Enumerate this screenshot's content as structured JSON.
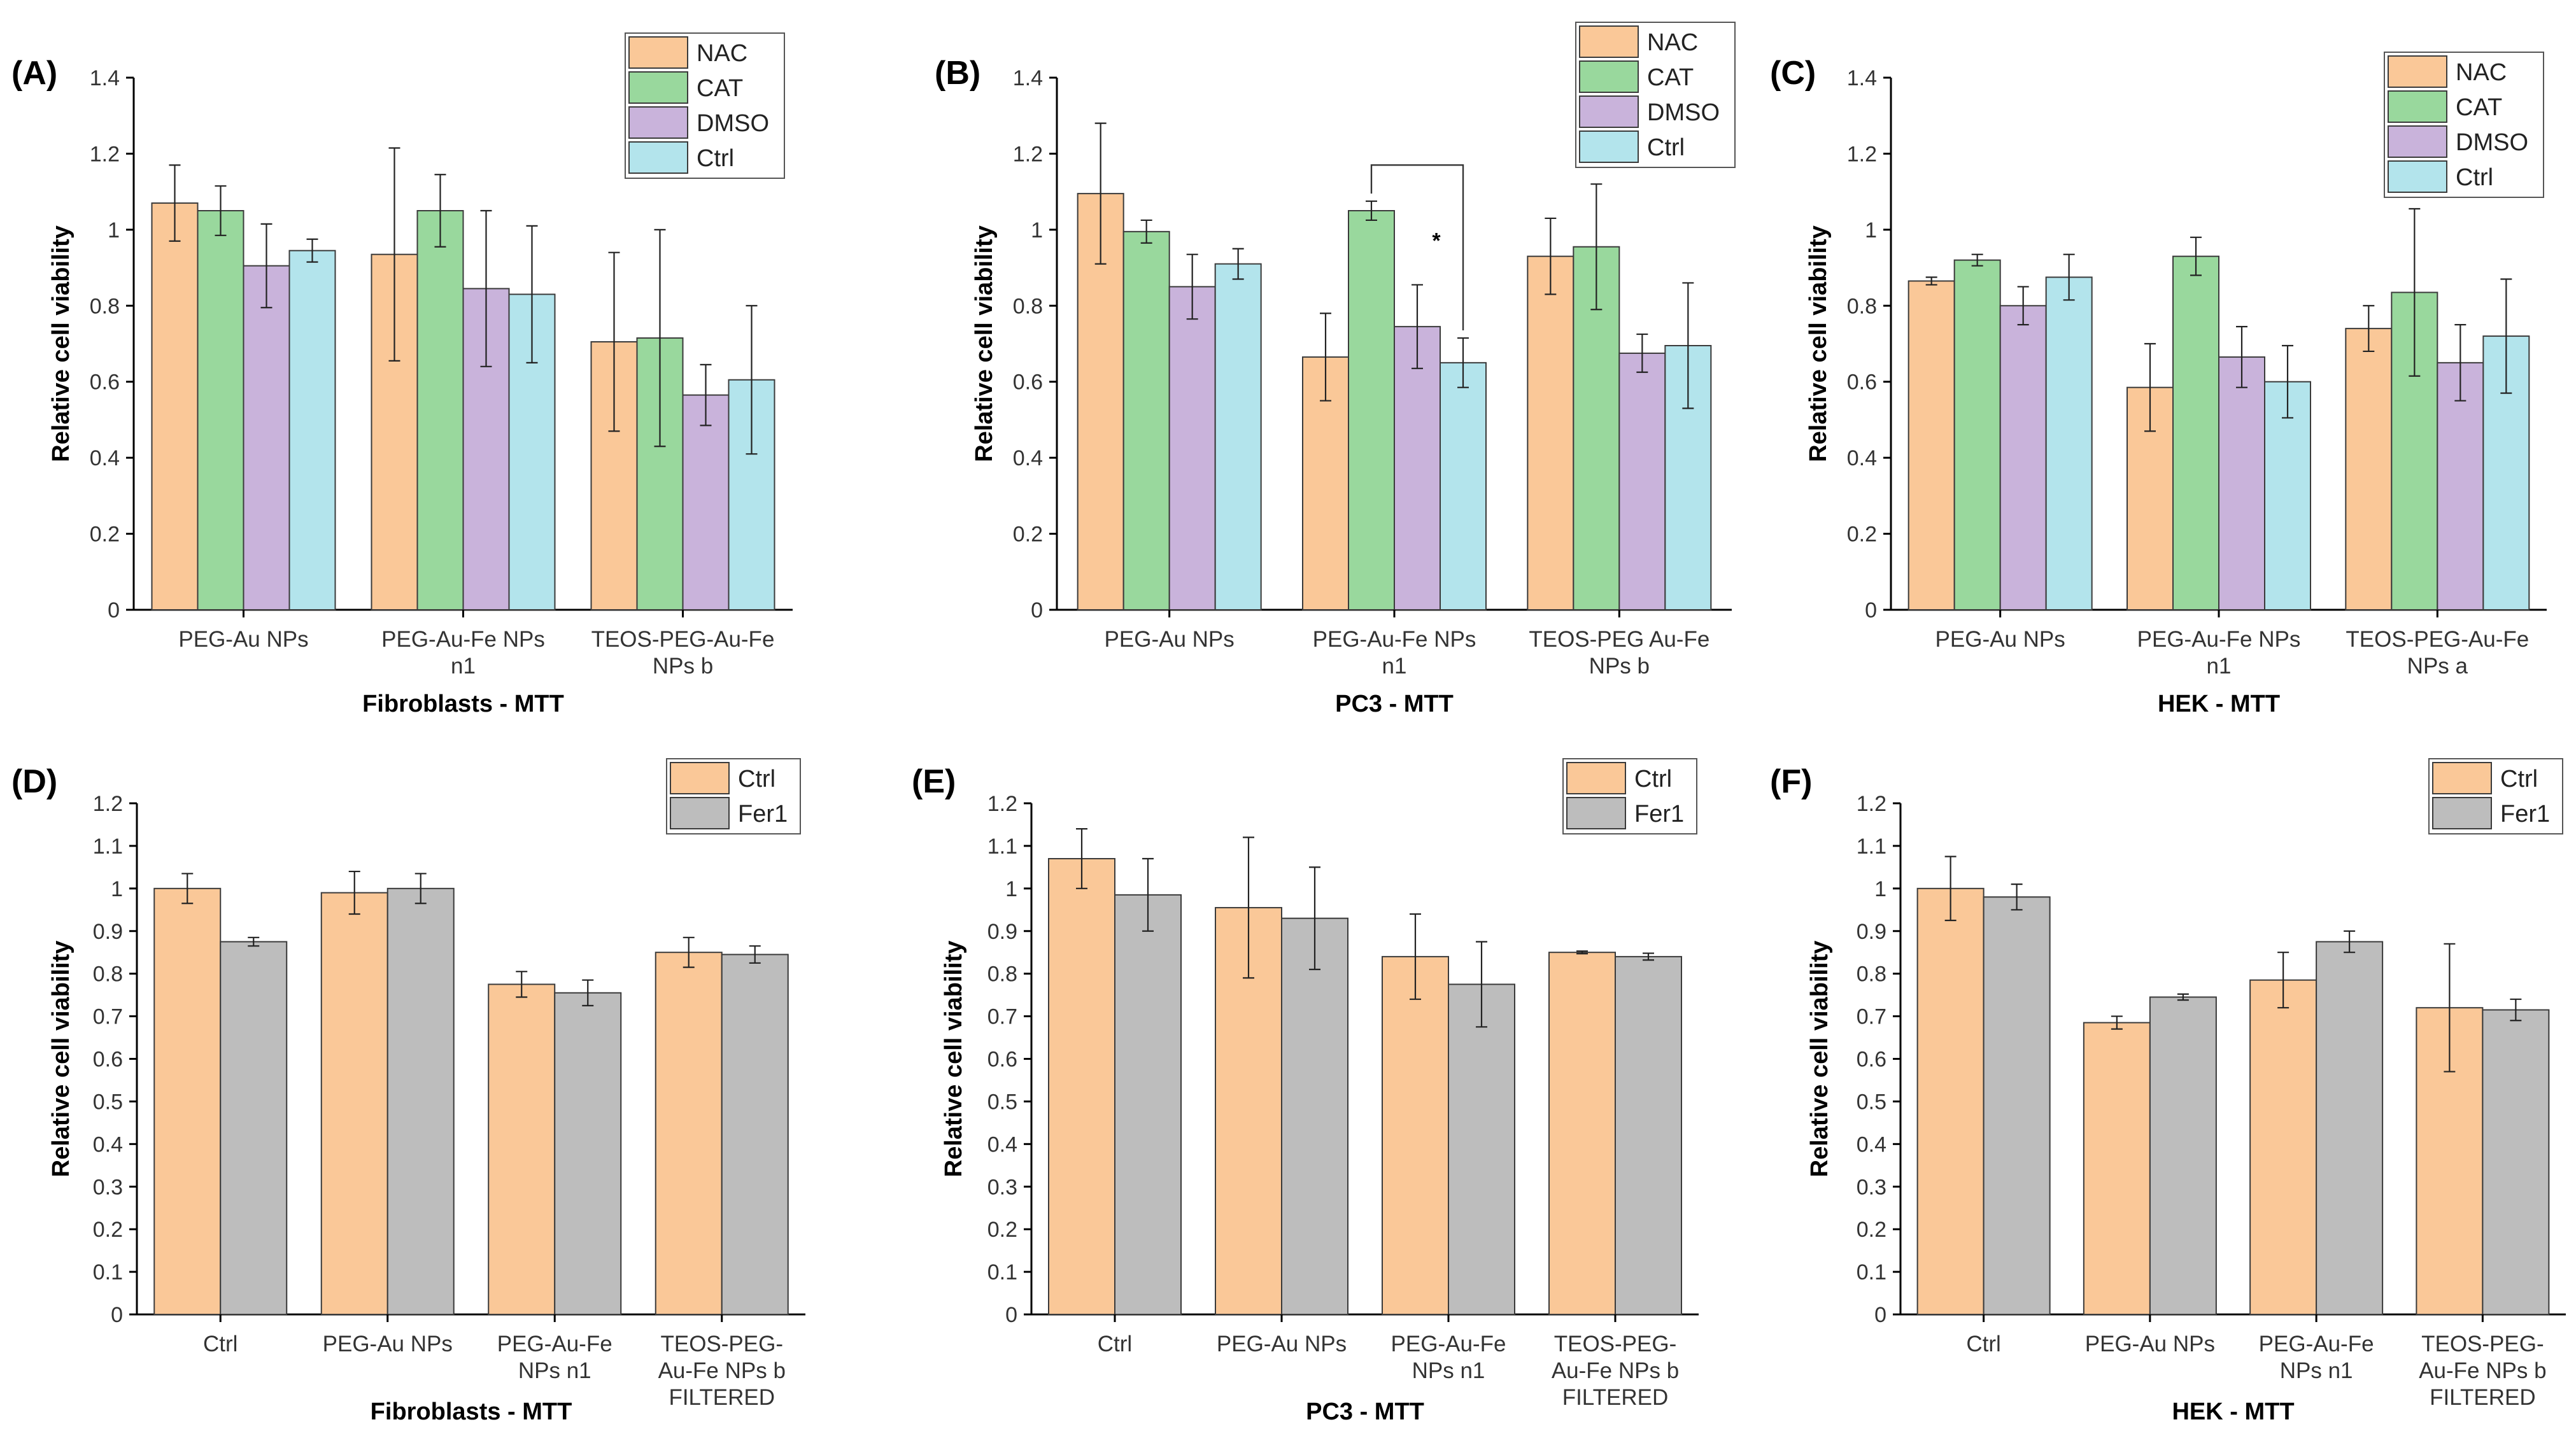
{
  "colors": {
    "NAC": "#fac898",
    "CAT": "#99d89d",
    "DMSO": "#c9b3db",
    "Ctrl_top": "#b3e4ec",
    "Ctrl_bottom": "#fac898",
    "Fer1": "#bdbdbd",
    "outline": "#3a3a3a",
    "axis": "#000000"
  },
  "chart_data": [
    {
      "panel": "(A)",
      "type": "bar",
      "xlabel": "Fibroblasts - MTT",
      "ylabel": "Relative cell viability",
      "ylim": [
        0,
        1.4
      ],
      "yticks": [
        "0",
        "0.2",
        "0.4",
        "0.6",
        "0.8",
        "1",
        "1.2",
        "1.4"
      ],
      "ytick_values": [
        0,
        0.2,
        0.4,
        0.6,
        0.8,
        1,
        1.2,
        1.4
      ],
      "categories": [
        [
          "PEG-Au NPs"
        ],
        [
          "PEG-Au-Fe NPs",
          "n1"
        ],
        [
          "TEOS-PEG-Au-Fe",
          "NPs b"
        ]
      ],
      "legend": [
        "NAC",
        "CAT",
        "DMSO",
        "Ctrl"
      ],
      "series": [
        {
          "name": "NAC",
          "color_key": "NAC",
          "values": [
            1.07,
            0.935,
            0.705
          ],
          "errors": [
            0.1,
            0.28,
            0.235
          ]
        },
        {
          "name": "CAT",
          "color_key": "CAT",
          "values": [
            1.05,
            1.05,
            0.715
          ],
          "errors": [
            0.065,
            0.095,
            0.285
          ]
        },
        {
          "name": "DMSO",
          "color_key": "DMSO",
          "values": [
            0.905,
            0.845,
            0.565
          ],
          "errors": [
            0.11,
            0.205,
            0.08
          ]
        },
        {
          "name": "Ctrl",
          "color_key": "Ctrl_top",
          "values": [
            0.945,
            0.83,
            0.605
          ],
          "errors": [
            0.03,
            0.18,
            0.195
          ]
        }
      ]
    },
    {
      "panel": "(B)",
      "type": "bar",
      "xlabel": "PC3 - MTT",
      "ylabel": "Relative cell viability",
      "ylim": [
        0,
        1.4
      ],
      "yticks": [
        "0",
        "0.2",
        "0.4",
        "0.6",
        "0.8",
        "1",
        "1.2",
        "1.4"
      ],
      "ytick_values": [
        0,
        0.2,
        0.4,
        0.6,
        0.8,
        1,
        1.2,
        1.4
      ],
      "categories": [
        [
          "PEG-Au NPs"
        ],
        [
          "PEG-Au-Fe NPs",
          "n1"
        ],
        [
          "TEOS-PEG Au-Fe",
          "NPs b"
        ]
      ],
      "legend": [
        "NAC",
        "CAT",
        "DMSO",
        "Ctrl"
      ],
      "significance": {
        "label": "*",
        "from_group": 1,
        "from_series": 1,
        "to_group": 1,
        "to_series": 3,
        "bracket_y": 1.17
      },
      "series": [
        {
          "name": "NAC",
          "color_key": "NAC",
          "values": [
            1.095,
            0.665,
            0.93
          ],
          "errors": [
            0.185,
            0.115,
            0.1
          ]
        },
        {
          "name": "CAT",
          "color_key": "CAT",
          "values": [
            0.995,
            1.05,
            0.955
          ],
          "errors": [
            0.03,
            0.025,
            0.165
          ]
        },
        {
          "name": "DMSO",
          "color_key": "DMSO",
          "values": [
            0.85,
            0.745,
            0.675
          ],
          "errors": [
            0.085,
            0.11,
            0.05
          ]
        },
        {
          "name": "Ctrl",
          "color_key": "Ctrl_top",
          "values": [
            0.91,
            0.65,
            0.695
          ],
          "errors": [
            0.04,
            0.065,
            0.165
          ]
        }
      ]
    },
    {
      "panel": "(C)",
      "type": "bar",
      "xlabel": "HEK - MTT",
      "ylabel": "Relative cell viability",
      "ylim": [
        0,
        1.4
      ],
      "yticks": [
        "0",
        "0.2",
        "0.4",
        "0.6",
        "0.8",
        "1",
        "1.2",
        "1.4"
      ],
      "ytick_values": [
        0,
        0.2,
        0.4,
        0.6,
        0.8,
        1,
        1.2,
        1.4
      ],
      "categories": [
        [
          "PEG-Au NPs"
        ],
        [
          "PEG-Au-Fe NPs",
          "n1"
        ],
        [
          "TEOS-PEG-Au-Fe",
          "NPs a"
        ]
      ],
      "legend": [
        "NAC",
        "CAT",
        "DMSO",
        "Ctrl"
      ],
      "series": [
        {
          "name": "NAC",
          "color_key": "NAC",
          "values": [
            0.865,
            0.585,
            0.74
          ],
          "errors": [
            0.01,
            0.115,
            0.06
          ]
        },
        {
          "name": "CAT",
          "color_key": "CAT",
          "values": [
            0.92,
            0.93,
            0.835
          ],
          "errors": [
            0.015,
            0.05,
            0.22
          ]
        },
        {
          "name": "DMSO",
          "color_key": "DMSO",
          "values": [
            0.8,
            0.665,
            0.65
          ],
          "errors": [
            0.05,
            0.08,
            0.1
          ]
        },
        {
          "name": "Ctrl",
          "color_key": "Ctrl_top",
          "values": [
            0.875,
            0.6,
            0.72
          ],
          "errors": [
            0.06,
            0.095,
            0.15
          ]
        }
      ]
    },
    {
      "panel": "(D)",
      "type": "bar",
      "xlabel": "Fibroblasts - MTT",
      "ylabel": "Relative cell viability",
      "ylim": [
        0,
        1.2
      ],
      "yticks": [
        "0",
        "0.1",
        "0.2",
        "0.3",
        "0.4",
        "0.5",
        "0.6",
        "0.7",
        "0.8",
        "0.9",
        "1",
        "1.1",
        "1.2"
      ],
      "ytick_values": [
        0,
        0.1,
        0.2,
        0.3,
        0.4,
        0.5,
        0.6,
        0.7,
        0.8,
        0.9,
        1,
        1.1,
        1.2
      ],
      "categories": [
        [
          "Ctrl"
        ],
        [
          "PEG-Au NPs"
        ],
        [
          "PEG-Au-Fe",
          "NPs n1"
        ],
        [
          "TEOS-PEG-",
          "Au-Fe NPs b",
          "FILTERED"
        ]
      ],
      "legend": [
        "Ctrl",
        "Fer1"
      ],
      "series": [
        {
          "name": "Ctrl",
          "color_key": "Ctrl_bottom",
          "values": [
            1.0,
            0.99,
            0.775,
            0.85
          ],
          "errors": [
            0.035,
            0.05,
            0.03,
            0.035
          ]
        },
        {
          "name": "Fer1",
          "color_key": "Fer1",
          "values": [
            0.875,
            1.0,
            0.755,
            0.845
          ],
          "errors": [
            0.01,
            0.035,
            0.03,
            0.02
          ]
        }
      ]
    },
    {
      "panel": "(E)",
      "type": "bar",
      "xlabel": "PC3 - MTT",
      "ylabel": "Relative cell viability",
      "ylim": [
        0,
        1.2
      ],
      "yticks": [
        "0",
        "0.1",
        "0.2",
        "0.3",
        "0.4",
        "0.5",
        "0.6",
        "0.7",
        "0.8",
        "0.9",
        "1",
        "1.1",
        "1.2"
      ],
      "ytick_values": [
        0,
        0.1,
        0.2,
        0.3,
        0.4,
        0.5,
        0.6,
        0.7,
        0.8,
        0.9,
        1,
        1.1,
        1.2
      ],
      "categories": [
        [
          "Ctrl"
        ],
        [
          "PEG-Au NPs"
        ],
        [
          "PEG-Au-Fe",
          "NPs n1"
        ],
        [
          "TEOS-PEG-",
          "Au-Fe NPs b",
          "FILTERED"
        ]
      ],
      "legend": [
        "Ctrl",
        "Fer1"
      ],
      "series": [
        {
          "name": "Ctrl",
          "color_key": "Ctrl_bottom",
          "values": [
            1.07,
            0.955,
            0.84,
            0.85
          ],
          "errors": [
            0.07,
            0.165,
            0.1,
            0.003
          ]
        },
        {
          "name": "Fer1",
          "color_key": "Fer1",
          "values": [
            0.985,
            0.93,
            0.775,
            0.84
          ],
          "errors": [
            0.085,
            0.12,
            0.1,
            0.008
          ]
        }
      ]
    },
    {
      "panel": "(F)",
      "type": "bar",
      "xlabel": "HEK - MTT",
      "ylabel": "Relative cell viability",
      "ylim": [
        0,
        1.2
      ],
      "yticks": [
        "0",
        "0.1",
        "0.2",
        "0.3",
        "0.4",
        "0.5",
        "0.6",
        "0.7",
        "0.8",
        "0.9",
        "1",
        "1.1",
        "1.2"
      ],
      "ytick_values": [
        0,
        0.1,
        0.2,
        0.3,
        0.4,
        0.5,
        0.6,
        0.7,
        0.8,
        0.9,
        1,
        1.1,
        1.2
      ],
      "categories": [
        [
          "Ctrl"
        ],
        [
          "PEG-Au NPs"
        ],
        [
          "PEG-Au-Fe",
          "NPs n1"
        ],
        [
          "TEOS-PEG-",
          "Au-Fe NPs b",
          "FILTERED"
        ]
      ],
      "legend": [
        "Ctrl",
        "Fer1"
      ],
      "series": [
        {
          "name": "Ctrl",
          "color_key": "Ctrl_bottom",
          "values": [
            1.0,
            0.685,
            0.785,
            0.72
          ],
          "errors": [
            0.075,
            0.015,
            0.065,
            0.15
          ]
        },
        {
          "name": "Fer1",
          "color_key": "Fer1",
          "values": [
            0.98,
            0.745,
            0.875,
            0.715
          ],
          "errors": [
            0.03,
            0.007,
            0.025,
            0.025
          ]
        }
      ]
    }
  ]
}
